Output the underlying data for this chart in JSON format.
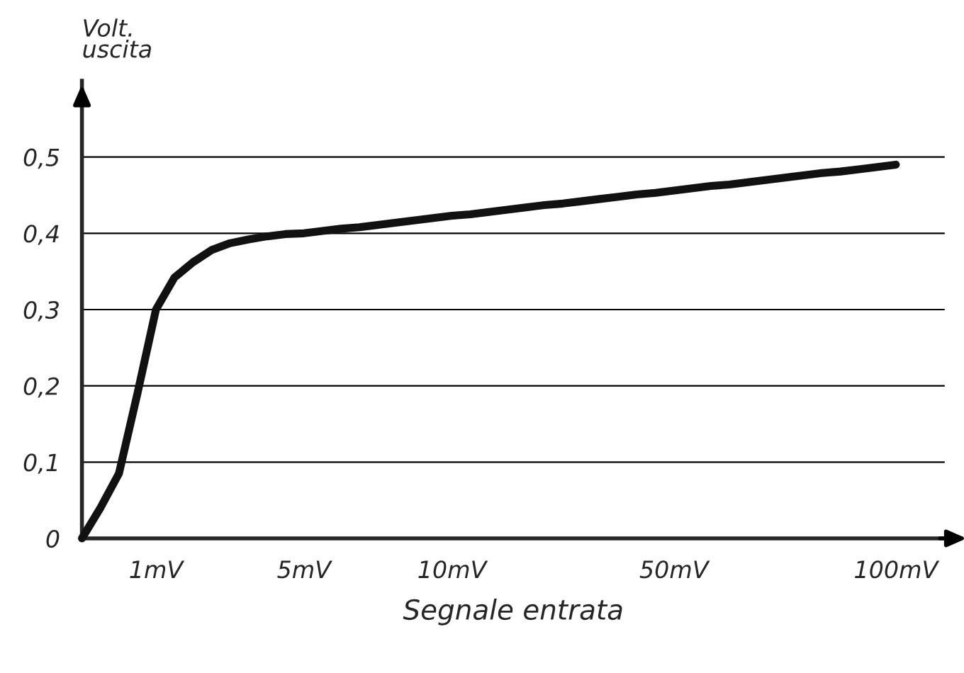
{
  "chart_data": {
    "type": "line",
    "xlabel": "Segnale entrata",
    "ylabel": "Volt.\nuscita",
    "categories": [
      null,
      null,
      null,
      null,
      "1mV",
      null,
      null,
      null,
      null,
      null,
      null,
      null,
      "5mV",
      null,
      null,
      null,
      null,
      null,
      null,
      null,
      "10mV",
      null,
      null,
      null,
      null,
      null,
      null,
      null,
      null,
      null,
      null,
      null,
      "50mV",
      null,
      null,
      null,
      null,
      null,
      null,
      null,
      null,
      null,
      null,
      null,
      "100mV"
    ],
    "series": [
      {
        "color": "#111111",
        "values": [
          0,
          0.04,
          0.085,
          0.19,
          0.3,
          0.342,
          0.362,
          0.378,
          0.387,
          0.392,
          0.396,
          0.399,
          0.4,
          0.403,
          0.406,
          0.408,
          0.411,
          0.414,
          0.417,
          0.42,
          0.423,
          0.425,
          0.428,
          0.431,
          0.434,
          0.437,
          0.439,
          0.442,
          0.445,
          0.448,
          0.451,
          0.453,
          0.456,
          0.459,
          0.462,
          0.464,
          0.467,
          0.47,
          0.473,
          0.476,
          0.479,
          0.481,
          0.484,
          0.487,
          0.49
        ]
      }
    ],
    "ylim": [
      0,
      0.6
    ],
    "yticks": [
      {
        "value": 0,
        "label": "0"
      },
      {
        "value": 0.1,
        "label": "0,1"
      },
      {
        "value": 0.2,
        "label": "0,2"
      },
      {
        "value": 0.3,
        "label": "0,3"
      },
      {
        "value": 0.4,
        "label": "0,4"
      },
      {
        "value": 0.5,
        "label": "0,5"
      }
    ],
    "grid": "y",
    "marker": "none",
    "line_style": "solid"
  }
}
